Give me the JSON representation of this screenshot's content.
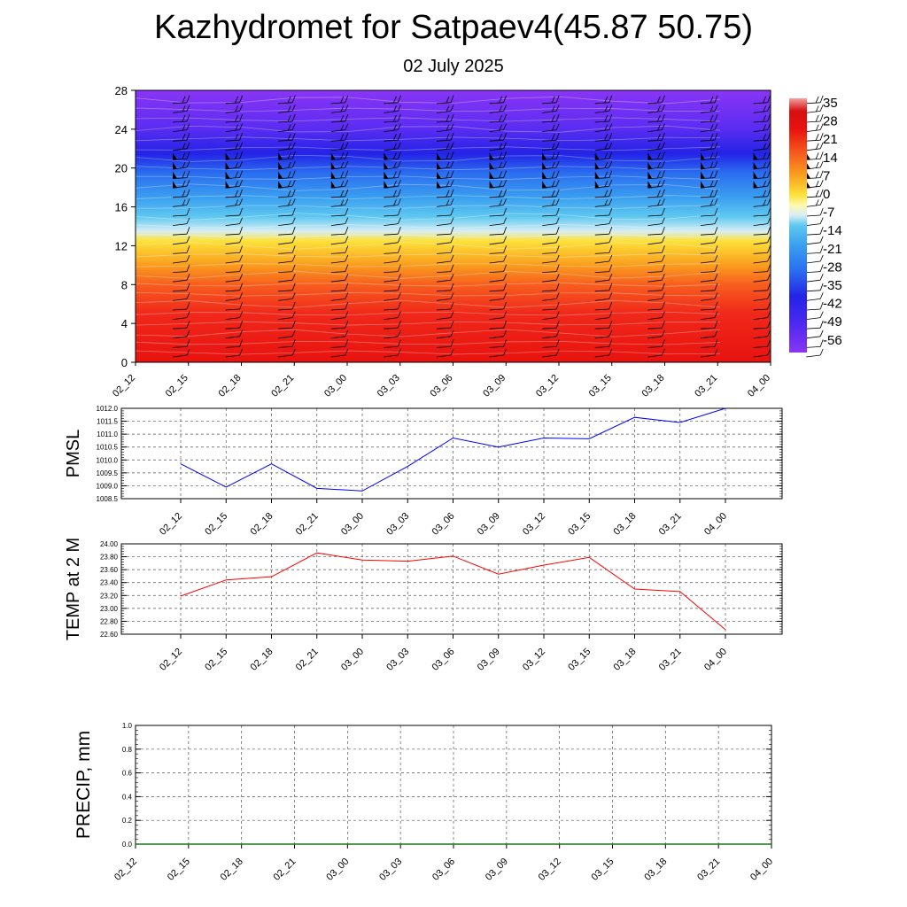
{
  "header": {
    "title": "Kazhydromet for Satpaev4(45.87 50.75)",
    "date": "02 July 2025"
  },
  "chart_data": [
    {
      "type": "heatmap",
      "y_ticks": [
        0,
        4,
        8,
        12,
        16,
        20,
        24,
        28
      ],
      "ylim": [
        0,
        28
      ],
      "x_labels": [
        "02_12",
        "02_15",
        "02_18",
        "02_21",
        "03_00",
        "03_03",
        "03_06",
        "03_09",
        "03_12",
        "03_15",
        "03_18",
        "03_21",
        "04_00"
      ],
      "colorbar_labels": [
        "35",
        "28",
        "21",
        "14",
        "7",
        "0",
        "-7",
        "-14",
        "-21",
        "-28",
        "-35",
        "-42",
        "-49",
        "-56"
      ],
      "colorbar_range": [
        -60,
        37
      ],
      "color_stops": [
        {
          "level": 0,
          "value": 30,
          "color": "#e8120f"
        },
        {
          "level": 5,
          "value": 25,
          "color": "#f0281a"
        },
        {
          "level": 8,
          "value": 18,
          "color": "#f75e1e"
        },
        {
          "level": 10,
          "value": 12,
          "color": "#fa9d1e"
        },
        {
          "level": 12.5,
          "value": 0,
          "color": "#fde23a"
        },
        {
          "level": 13.5,
          "value": -14,
          "color": "#d8eef5"
        },
        {
          "level": 15,
          "value": -25,
          "color": "#5ec8f0"
        },
        {
          "level": 17,
          "value": -34,
          "color": "#3a9ef0"
        },
        {
          "level": 19.5,
          "value": -43,
          "color": "#2a6df0"
        },
        {
          "level": 21.5,
          "value": -50,
          "color": "#2323e6"
        },
        {
          "level": 24,
          "value": -54,
          "color": "#5a2cf2"
        },
        {
          "level": 28,
          "value": -58,
          "color": "#8a35f5"
        }
      ]
    },
    {
      "type": "line",
      "ylabel": "PMSL",
      "x": [
        "02_12",
        "02_15",
        "02_18",
        "02_21",
        "03_00",
        "03_03",
        "03_06",
        "03_09",
        "03_12",
        "03_15",
        "03_18",
        "03_21",
        "04_00"
      ],
      "series": [
        {
          "values": [
            1009.85,
            1008.95,
            1009.85,
            1008.9,
            1008.8,
            1009.75,
            1010.85,
            1010.5,
            1010.85,
            1010.82,
            1011.65,
            1011.45,
            1012.0
          ],
          "color": "#0000ff"
        }
      ],
      "ylim": [
        1008.5,
        1012.0
      ],
      "y_ticks": [
        "1008.5",
        "1009.0",
        "1009.5",
        "1010.0",
        "1010.5",
        "1011.0",
        "1011.5",
        "1012.0"
      ]
    },
    {
      "type": "line",
      "ylabel": "TEMP at 2 M",
      "x": [
        "02_12",
        "02_15",
        "02_18",
        "02_21",
        "03_00",
        "03_03",
        "03_06",
        "03_09",
        "03_12",
        "03_15",
        "03_18",
        "03_21",
        "04_00"
      ],
      "series": [
        {
          "values": [
            23.19,
            23.44,
            23.49,
            23.86,
            23.75,
            23.73,
            23.81,
            23.53,
            23.67,
            23.79,
            23.3,
            23.26,
            22.67
          ],
          "color": "#ff0000"
        }
      ],
      "ylim": [
        22.6,
        24.0
      ],
      "y_ticks": [
        "22.60",
        "22.80",
        "23.00",
        "23.20",
        "23.40",
        "23.60",
        "23.80",
        "24.00"
      ]
    },
    {
      "type": "line",
      "ylabel": "PRECIP, mm",
      "x": [
        "02_12",
        "02_15",
        "02_18",
        "02_21",
        "03_00",
        "03_03",
        "03_06",
        "03_09",
        "03_12",
        "03_15",
        "03_18",
        "03_21",
        "04_00"
      ],
      "series": [
        {
          "values": [
            0,
            0,
            0,
            0,
            0,
            0,
            0,
            0,
            0,
            0,
            0,
            0,
            0
          ],
          "color": "#1a7a1a"
        }
      ],
      "ylim": [
        0,
        1
      ],
      "y_ticks": [
        "0.0",
        "0.2",
        "0.4",
        "0.6",
        "0.8",
        "1.0"
      ]
    }
  ]
}
